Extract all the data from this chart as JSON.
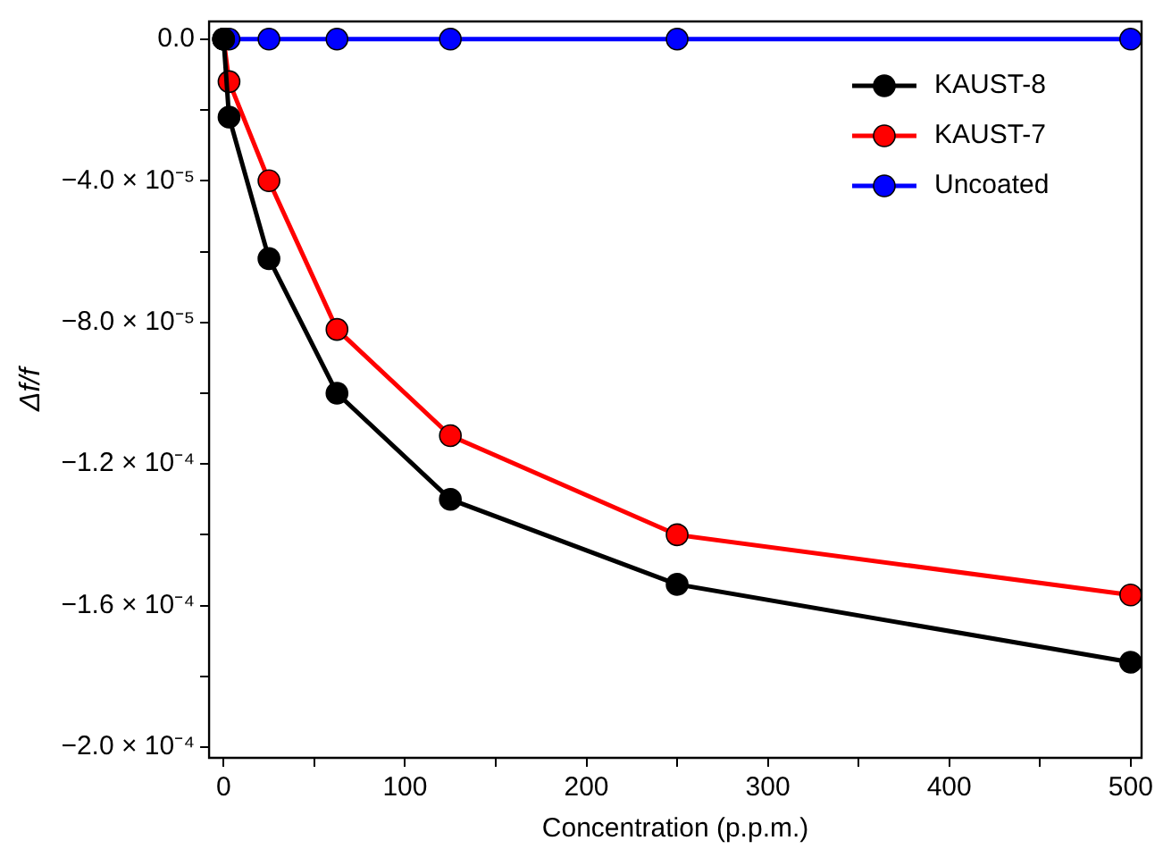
{
  "chart_data": {
    "type": "line",
    "xlabel": "Concentration (p.p.m.)",
    "ylabel": "Δf/f",
    "x": [
      0,
      3,
      25,
      62.5,
      125,
      250,
      500
    ],
    "series": [
      {
        "name": "KAUST-8",
        "color": "#000000",
        "values": [
          0,
          -2.2e-05,
          -6.2e-05,
          -0.0001,
          -0.00013,
          -0.000154,
          -0.000176
        ]
      },
      {
        "name": "KAUST-7",
        "color": "#ff0000",
        "values": [
          0,
          -1.2e-05,
          -4e-05,
          -8.2e-05,
          -0.000112,
          -0.00014,
          -0.000157
        ]
      },
      {
        "name": "Uncoated",
        "color": "#0000ff",
        "values": [
          0,
          0,
          0,
          0,
          0,
          0,
          0
        ]
      }
    ],
    "xlim": [
      -8,
      506
    ],
    "xticks": [
      0,
      {
        "value": 50,
        "label": null
      },
      100,
      {
        "value": 150,
        "label": null
      },
      200,
      {
        "value": 250,
        "label": null
      },
      300,
      {
        "value": 350,
        "label": null
      },
      400,
      {
        "value": 450,
        "label": null
      },
      500
    ],
    "ylim": [
      -0.000203,
      5e-06
    ],
    "yticks": [
      {
        "value": 0,
        "label": "0.0"
      },
      {
        "value": -2e-05,
        "label": null
      },
      {
        "value": -4e-05,
        "label": "−4.0 × 10⁻⁵"
      },
      {
        "value": -6e-05,
        "label": null
      },
      {
        "value": -8e-05,
        "label": "−8.0 × 10⁻⁵"
      },
      {
        "value": -0.0001,
        "label": null
      },
      {
        "value": -0.00012,
        "label": "−1.2 × 10⁻⁴"
      },
      {
        "value": -0.00014,
        "label": null
      },
      {
        "value": -0.00016,
        "label": "−1.6 × 10⁻⁴"
      },
      {
        "value": -0.00018,
        "label": null
      },
      {
        "value": -0.0002,
        "label": "−2.0 × 10⁻⁴"
      }
    ],
    "grid": false,
    "legend": "top right",
    "marker": "circle",
    "line_style": "solid"
  }
}
